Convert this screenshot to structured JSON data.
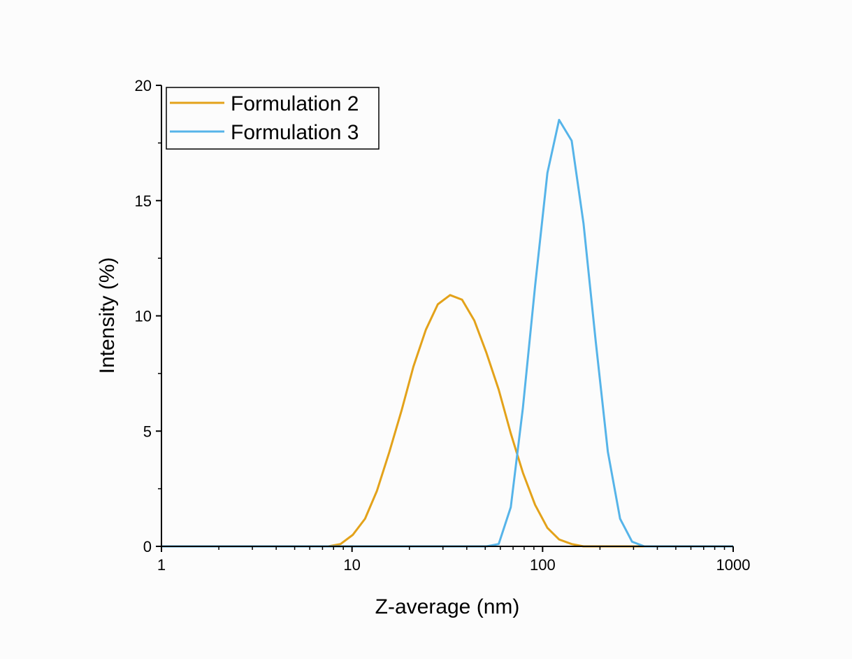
{
  "chart_data": {
    "type": "line",
    "title": "",
    "xlabel": "Z-average (nm)",
    "ylabel": "Intensity (%)",
    "xscale": "log",
    "xlim": [
      1,
      1000
    ],
    "ylim": [
      0,
      20
    ],
    "x_ticks": [
      "1",
      "10",
      "100",
      "1000"
    ],
    "y_ticks": [
      "0",
      "5",
      "10",
      "15",
      "20"
    ],
    "grid": false,
    "legend_position": "top-left",
    "series": [
      {
        "name": "Formulation 2",
        "color": "#E3A21A",
        "x": [
          1,
          7.5,
          8.7,
          10.1,
          11.7,
          13.5,
          15.7,
          18.2,
          21.0,
          24.4,
          28.2,
          32.7,
          37.8,
          43.8,
          50.7,
          58.8,
          68.1,
          78.8,
          91.3,
          106,
          122,
          142,
          164,
          190,
          1000
        ],
        "y": [
          0,
          0,
          0.1,
          0.5,
          1.2,
          2.4,
          4.1,
          5.9,
          7.8,
          9.4,
          10.5,
          10.9,
          10.7,
          9.8,
          8.4,
          6.8,
          4.9,
          3.2,
          1.8,
          0.8,
          0.3,
          0.1,
          0,
          0,
          0
        ]
      },
      {
        "name": "Formulation 3",
        "color": "#56B4E9",
        "x": [
          1,
          50.7,
          58.8,
          68.1,
          78.8,
          91.3,
          106,
          122,
          142,
          164,
          190,
          220,
          255,
          295,
          342,
          1000
        ],
        "y": [
          0,
          0,
          0.1,
          1.7,
          6.0,
          11.3,
          16.2,
          18.5,
          17.6,
          14.0,
          8.9,
          4.1,
          1.2,
          0.2,
          0,
          0
        ]
      }
    ]
  }
}
